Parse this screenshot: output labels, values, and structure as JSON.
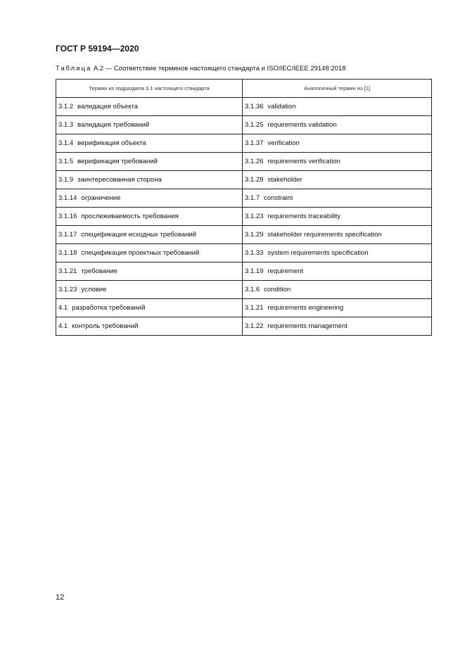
{
  "header": {
    "title": "ГОСТ Р 59194—2020"
  },
  "caption": {
    "label": "Таблица",
    "text": " А.2 — Соответствие терминов настоящего стандарта и ISO/IEC/IEEE 29148:2018"
  },
  "table": {
    "columns": [
      "Термин из подраздела 3.1 настоящего стандарта",
      "Аналогичный термин из [1]"
    ],
    "rows": [
      {
        "ln": "3.1.2",
        "lt": "валидация объекта",
        "rn": "3.1.36",
        "rt": "validation"
      },
      {
        "ln": "3.1.3",
        "lt": "валидация требований",
        "rn": "3.1.25",
        "rt": "requirements validation"
      },
      {
        "ln": "3.1.4",
        "lt": "верификация объекта",
        "rn": "3.1.37",
        "rt": "verification"
      },
      {
        "ln": "3.1.5",
        "lt": "верификация требований",
        "rn": "3.1.26",
        "rt": "requirements verification"
      },
      {
        "ln": "3.1.9",
        "lt": "заинтересованная сторона",
        "rn": "3.1.28",
        "rt": "stakeholder"
      },
      {
        "ln": "3.1.14",
        "lt": "ограничение",
        "rn": "3.1.7",
        "rt": "constraint"
      },
      {
        "ln": "3.1.16",
        "lt": "прослеживаемость требования",
        "rn": "3.1.23",
        "rt": "requirements traceability"
      },
      {
        "ln": "3.1.17",
        "lt": "спецификация исходных требований",
        "rn": "3.1.29",
        "rt": "stakeholder requirements specification"
      },
      {
        "ln": "3.1.18",
        "lt": "спецификация проектных требований",
        "rn": "3.1.33",
        "rt": "system requirements specification"
      },
      {
        "ln": "3.1.21",
        "lt": "требование",
        "rn": "3.1.19",
        "rt": "requirement"
      },
      {
        "ln": "3.1.23",
        "lt": "условие",
        "rn": "3.1.6",
        "rt": "condition"
      },
      {
        "ln": "4.1",
        "lt": "разработка требований",
        "rn": "3.1.21",
        "rt": "requirements engineering"
      },
      {
        "ln": "4.1",
        "lt": "контроль требований",
        "rn": "3.1.22",
        "rt": "requirements management"
      }
    ]
  },
  "footer": {
    "page_number": "12"
  }
}
